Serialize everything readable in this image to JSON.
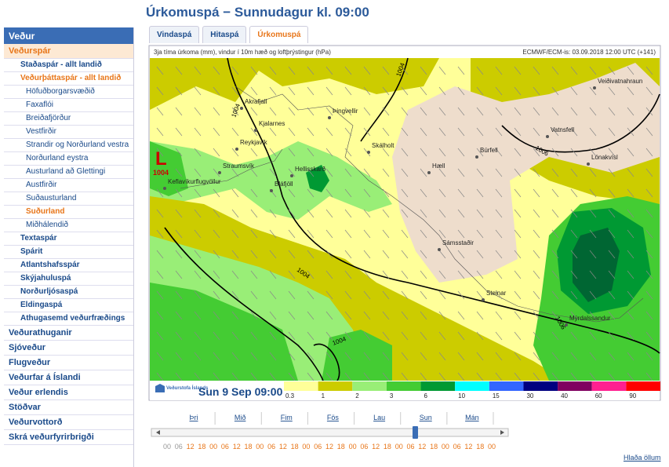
{
  "sidebar": {
    "header": "Veður",
    "items": [
      {
        "text": "Veðurspár",
        "level": 0,
        "current": true
      },
      {
        "text": "Staðaspár - allt landið",
        "level": 1,
        "current": false
      },
      {
        "text": "Veðurþáttaspár - allt landið",
        "level": 1,
        "current": true
      },
      {
        "text": "Höfuðborgarsvæðið",
        "level": 2,
        "current": false
      },
      {
        "text": "Faxaflói",
        "level": 2,
        "current": false
      },
      {
        "text": "Breiðafjörður",
        "level": 2,
        "current": false
      },
      {
        "text": "Vestfirðir",
        "level": 2,
        "current": false
      },
      {
        "text": "Strandir og Norðurland vestra",
        "level": 2,
        "current": false
      },
      {
        "text": "Norðurland eystra",
        "level": 2,
        "current": false
      },
      {
        "text": "Austurland að Glettingi",
        "level": 2,
        "current": false
      },
      {
        "text": "Austfirðir",
        "level": 2,
        "current": false
      },
      {
        "text": "Suðausturland",
        "level": 2,
        "current": false
      },
      {
        "text": "Suðurland",
        "level": 2,
        "current": true
      },
      {
        "text": "Miðhálendið",
        "level": 2,
        "current": false
      },
      {
        "text": "Textaspár",
        "level": 1,
        "current": false
      },
      {
        "text": "Spárit",
        "level": 1,
        "current": false
      },
      {
        "text": "Atlantshafsspár",
        "level": 1,
        "current": false
      },
      {
        "text": "Skýjahuluspá",
        "level": 1,
        "current": false
      },
      {
        "text": "Norðurljósaspá",
        "level": 1,
        "current": false
      },
      {
        "text": "Eldingaspá",
        "level": 1,
        "current": false
      },
      {
        "text": "Athugasemd veðurfræðings",
        "level": 1,
        "current": false
      },
      {
        "text": "Veðurathuganir",
        "level": 0,
        "current": false
      },
      {
        "text": "Sjóveður",
        "level": 0,
        "current": false
      },
      {
        "text": "Flugveður",
        "level": 0,
        "current": false
      },
      {
        "text": "Veðurfar á Íslandi",
        "level": 0,
        "current": false
      },
      {
        "text": "Veður erlendis",
        "level": 0,
        "current": false
      },
      {
        "text": "Stöðvar",
        "level": 0,
        "current": false
      },
      {
        "text": "Veðurvottorð",
        "level": 0,
        "current": false
      },
      {
        "text": "Skrá veðurfyrirbrigði",
        "level": 0,
        "current": false
      }
    ]
  },
  "title": "Úrkomuspá − Sunnudagur kl. 09:00",
  "tabs": {
    "items": [
      "Vindaspá",
      "Hitaspá",
      "Úrkomuspá"
    ],
    "active": 2
  },
  "map": {
    "caption": "3ja tíma úrkoma (mm), vindur í 10m hæð og loftþrýstingur (hPa)",
    "model": "ECMWF/ECM-is: 03.09.2018 12:00 UTC (+141)",
    "places": [
      "Akrafjall",
      "Kjalarnes",
      "Reykjavík",
      "Straumsvík",
      "Keflavíkurflugvöllur",
      "Bláfjöll",
      "Hellisskarð",
      "Þingvellir",
      "Skálholt",
      "Hæll",
      "Búrfell",
      "Sámsstaðir",
      "Steinar",
      "Mýrdalssandur",
      "Vatnsfell",
      "Lónakvísl",
      "Veiðivatnahraun"
    ],
    "isobars": [
      "1004",
      "1004",
      "1004",
      "1006",
      "1006",
      "1004"
    ],
    "low": {
      "symbol": "L",
      "pressure": "1004"
    }
  },
  "footer": {
    "logo": "Veðurstofa Íslands",
    "time": "Sun 9 Sep 09:00",
    "legend": {
      "labels": [
        "0.3",
        "1",
        "2",
        "3",
        "6",
        "10",
        "15",
        "30",
        "40",
        "60",
        "90"
      ],
      "colors": [
        "#ffff99",
        "#cccc00",
        "#99ee77",
        "#44cc33",
        "#009933",
        "#00ffff",
        "#3366ff",
        "#000080",
        "#800060",
        "#ff2090",
        "#ff0000"
      ]
    }
  },
  "timeline": {
    "days": [
      "Þri",
      "Mið",
      "Fim",
      "Fös",
      "Lau",
      "Sun",
      "Mán"
    ],
    "hours": [
      "00",
      "06",
      "12",
      "18",
      "00",
      "06",
      "12",
      "18",
      "00",
      "06",
      "12",
      "18",
      "00",
      "06",
      "12",
      "18",
      "00",
      "06",
      "12",
      "18",
      "00",
      "06",
      "12",
      "18",
      "00",
      "06",
      "12",
      "18",
      "00"
    ],
    "load_all": "Hlaða öllum"
  }
}
